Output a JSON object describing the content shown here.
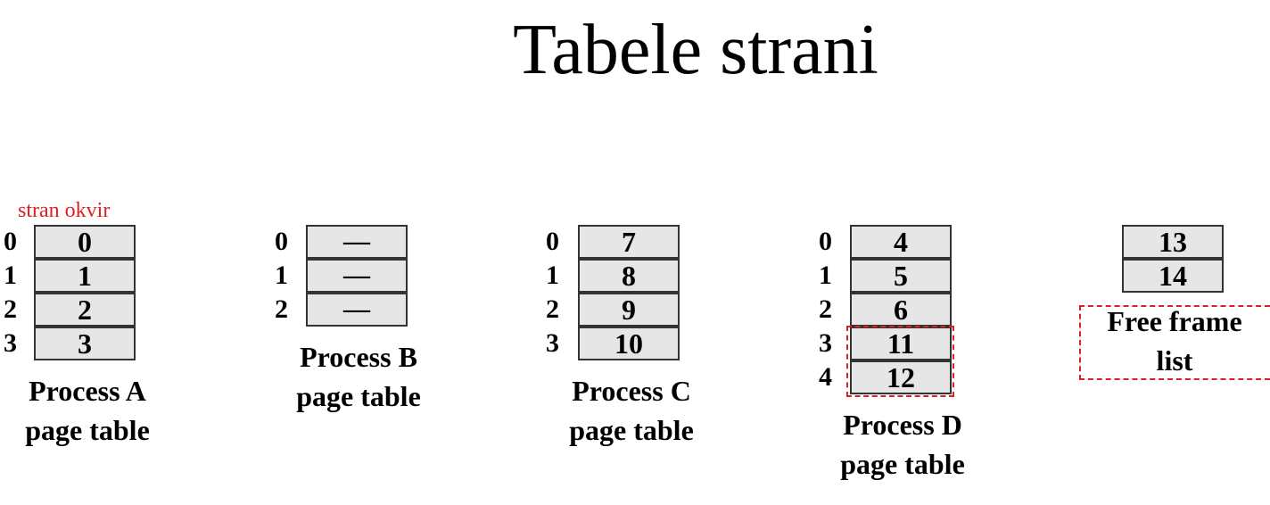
{
  "title": "Tabele strani",
  "annotation": "stran okvir",
  "process_a": {
    "pages": [
      "0",
      "1",
      "2",
      "3"
    ],
    "frames": [
      "0",
      "1",
      "2",
      "3"
    ],
    "caption_line1": "Process A",
    "caption_line2": "page table"
  },
  "process_b": {
    "pages": [
      "0",
      "1",
      "2"
    ],
    "frames": [
      "—",
      "—",
      "—"
    ],
    "caption_line1": "Process B",
    "caption_line2": "page table"
  },
  "process_c": {
    "pages": [
      "0",
      "1",
      "2",
      "3"
    ],
    "frames": [
      "7",
      "8",
      "9",
      "10"
    ],
    "caption_line1": "Process C",
    "caption_line2": "page table"
  },
  "process_d": {
    "pages": [
      "0",
      "1",
      "2",
      "3",
      "4"
    ],
    "frames": [
      "4",
      "5",
      "6",
      "11",
      "12"
    ],
    "caption_line1": "Process D",
    "caption_line2": "page table"
  },
  "free_list": {
    "frames": [
      "13",
      "14"
    ],
    "caption_line1": "Free frame",
    "caption_line2": "list"
  },
  "colors": {
    "annotation": "#e02020",
    "cell_fill": "#e6e6e6",
    "cell_border": "#333333"
  }
}
